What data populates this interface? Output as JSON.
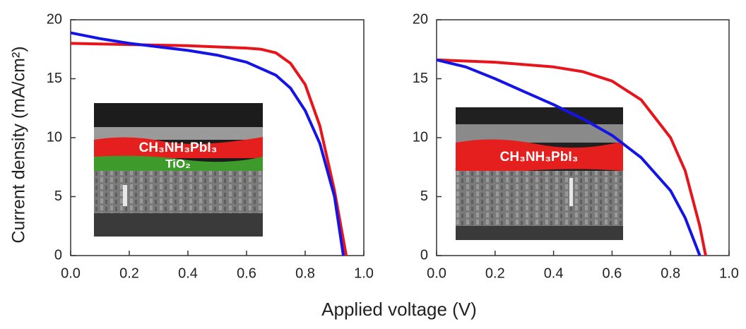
{
  "y_label": "Current density (mA/cm²)",
  "x_label": "Applied voltage (V)",
  "chart_data": [
    {
      "type": "line",
      "xlim": [
        0,
        1.0
      ],
      "ylim": [
        0,
        20
      ],
      "xticks": [
        {
          "value": 0,
          "label": "0.0"
        },
        {
          "value": 0.2,
          "label": "0.2"
        },
        {
          "value": 0.4,
          "label": "0.4"
        },
        {
          "value": 0.6,
          "label": "0.6"
        },
        {
          "value": 0.8,
          "label": "0.8"
        },
        {
          "value": 1.0,
          "label": "1.0"
        }
      ],
      "yticks": [
        0,
        5,
        10,
        15,
        20
      ],
      "inset_labels": [
        "CH₃NH₃PbI₃",
        "TiO₂"
      ],
      "series": [
        {
          "color": "#e8141c",
          "x": [
            0,
            0.2,
            0.4,
            0.6,
            0.65,
            0.7,
            0.75,
            0.8,
            0.85,
            0.9,
            0.94
          ],
          "values": [
            18.0,
            17.9,
            17.8,
            17.6,
            17.5,
            17.2,
            16.3,
            14.5,
            11.0,
            5.5,
            0
          ]
        },
        {
          "color": "#1414e6",
          "x": [
            0,
            0.1,
            0.2,
            0.3,
            0.4,
            0.5,
            0.6,
            0.7,
            0.75,
            0.8,
            0.85,
            0.9,
            0.93
          ],
          "values": [
            18.9,
            18.4,
            18.0,
            17.7,
            17.4,
            17.0,
            16.4,
            15.3,
            14.2,
            12.3,
            9.5,
            5.0,
            0
          ]
        }
      ]
    },
    {
      "type": "line",
      "xlim": [
        0,
        1.0
      ],
      "ylim": [
        0,
        20
      ],
      "xticks": [
        {
          "value": 0,
          "label": "0.0"
        },
        {
          "value": 0.2,
          "label": "0.2"
        },
        {
          "value": 0.4,
          "label": "0.4"
        },
        {
          "value": 0.6,
          "label": "0.6"
        },
        {
          "value": 0.8,
          "label": "0.8"
        },
        {
          "value": 1.0,
          "label": "1.0"
        }
      ],
      "yticks": [
        0,
        5,
        10,
        15,
        20
      ],
      "inset_labels": [
        "CH₃NH₃PbI₃"
      ],
      "series": [
        {
          "color": "#e8141c",
          "x": [
            0,
            0.2,
            0.4,
            0.5,
            0.6,
            0.7,
            0.8,
            0.85,
            0.9,
            0.92
          ],
          "values": [
            16.6,
            16.4,
            16.0,
            15.6,
            14.8,
            13.2,
            10.0,
            7.2,
            2.5,
            0
          ]
        },
        {
          "color": "#1414e6",
          "x": [
            0,
            0.1,
            0.2,
            0.3,
            0.4,
            0.5,
            0.6,
            0.7,
            0.8,
            0.85,
            0.9
          ],
          "values": [
            16.6,
            16.0,
            15.0,
            13.9,
            12.8,
            11.6,
            10.2,
            8.3,
            5.5,
            3.2,
            0
          ]
        }
      ]
    }
  ]
}
